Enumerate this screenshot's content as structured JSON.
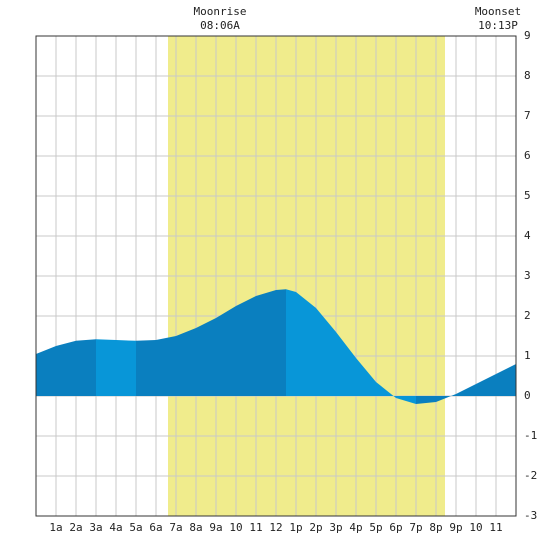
{
  "chart_data": {
    "type": "area",
    "annotations": [
      {
        "label": "Moonrise",
        "time": "08:06A"
      },
      {
        "label": "Moonset",
        "time": "10:13P"
      }
    ],
    "shaded_range": [
      6.6,
      20.45
    ],
    "shade_color": "#f0ec8c",
    "rising_color": "#0a7fbf",
    "falling_color": "#0896d8",
    "grid": true,
    "x": [
      0,
      1,
      2,
      3,
      4,
      5,
      6,
      7,
      8,
      9,
      10,
      11,
      12,
      12.5,
      13,
      14,
      15,
      16,
      17,
      18,
      19,
      20,
      21,
      22,
      23,
      24
    ],
    "values": [
      1.05,
      1.25,
      1.38,
      1.42,
      1.4,
      1.38,
      1.4,
      1.5,
      1.7,
      1.95,
      2.25,
      2.5,
      2.65,
      2.67,
      2.6,
      2.2,
      1.6,
      0.95,
      0.35,
      -0.05,
      -0.2,
      -0.15,
      0.05,
      0.3,
      0.55,
      0.8
    ],
    "xlim": [
      0,
      24
    ],
    "xticks": [
      {
        "value": 1,
        "label": "1a"
      },
      {
        "value": 2,
        "label": "2a"
      },
      {
        "value": 3,
        "label": "3a"
      },
      {
        "value": 4,
        "label": "4a"
      },
      {
        "value": 5,
        "label": "5a"
      },
      {
        "value": 6,
        "label": "6a"
      },
      {
        "value": 7,
        "label": "7a"
      },
      {
        "value": 8,
        "label": "8a"
      },
      {
        "value": 9,
        "label": "9a"
      },
      {
        "value": 10,
        "label": "10"
      },
      {
        "value": 11,
        "label": "11"
      },
      {
        "value": 12,
        "label": "12"
      },
      {
        "value": 13,
        "label": "1p"
      },
      {
        "value": 14,
        "label": "2p"
      },
      {
        "value": 15,
        "label": "3p"
      },
      {
        "value": 16,
        "label": "4p"
      },
      {
        "value": 17,
        "label": "5p"
      },
      {
        "value": 18,
        "label": "6p"
      },
      {
        "value": 19,
        "label": "7p"
      },
      {
        "value": 20,
        "label": "8p"
      },
      {
        "value": 21,
        "label": "9p"
      },
      {
        "value": 22,
        "label": "10"
      },
      {
        "value": 23,
        "label": "11"
      }
    ],
    "ylim": [
      -3,
      9
    ],
    "yticks": [
      -3,
      -2,
      -1,
      0,
      1,
      2,
      3,
      4,
      5,
      6,
      7,
      8,
      9
    ]
  }
}
